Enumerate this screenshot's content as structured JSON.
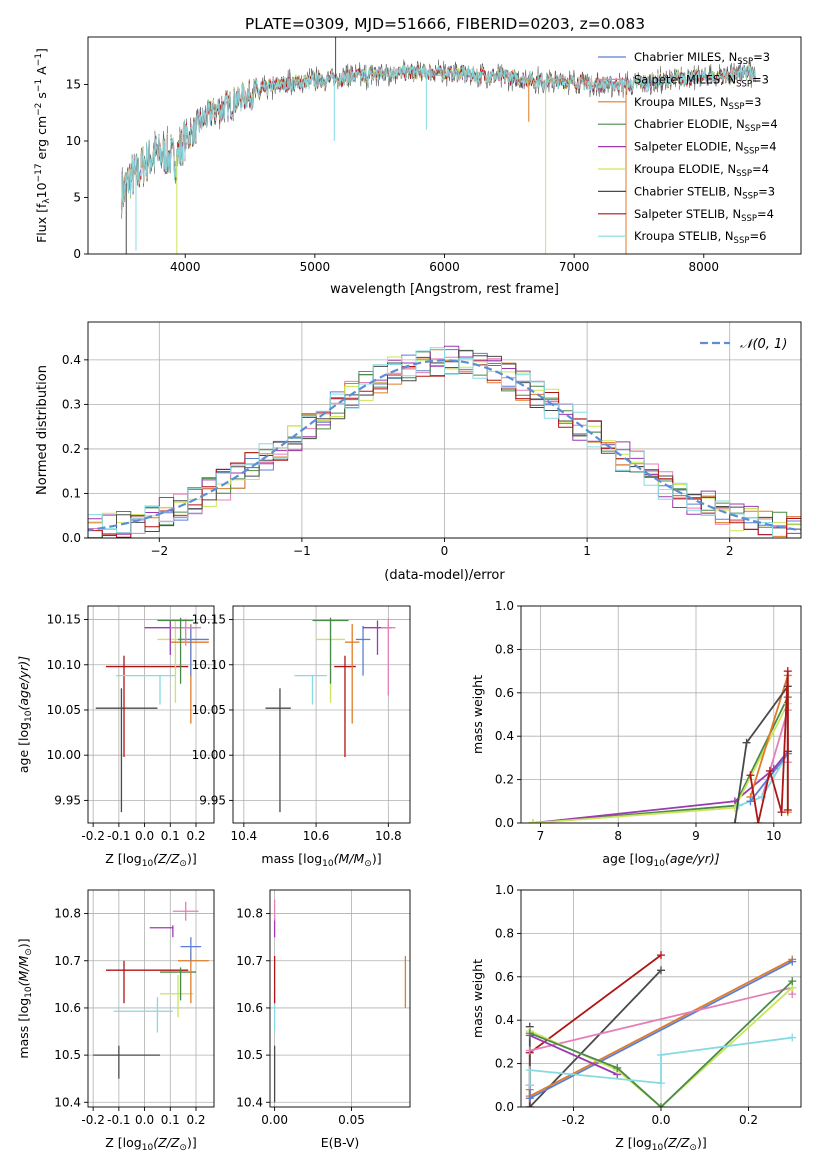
{
  "figure_title": "PLATE=0309, MJD=51666, FIBERID=0203, z=0.083",
  "chart_data": [
    {
      "id": "spectrum",
      "type": "line",
      "xlabel": "wavelength [Angstrom, rest frame]",
      "ylabel_parts": [
        "Flux [f",
        "λ",
        "10",
        "−17",
        " erg cm",
        "−2",
        " s",
        "−1",
        " A",
        "−1",
        "]"
      ],
      "xlim": [
        3250,
        8750
      ],
      "ylim": [
        0,
        19.2
      ],
      "xticks": [
        4000,
        5000,
        6000,
        7000,
        8000
      ],
      "yticks": [
        0,
        5,
        10,
        15
      ],
      "grid": false,
      "legend_position": "right",
      "envelope": {
        "x": [
          3510,
          3560,
          3620,
          3700,
          3780,
          3850,
          3930,
          4000,
          4080,
          4150,
          4250,
          4350,
          4450,
          4550,
          4650,
          4800,
          5000,
          5200,
          5400,
          5600,
          5800,
          6000,
          6200,
          6400,
          6600,
          6800,
          7000,
          7200,
          7400,
          7600,
          7800,
          8000,
          8200,
          8400
        ],
        "y": [
          5.5,
          6.5,
          7.0,
          8.2,
          9.0,
          8.8,
          8.5,
          10.3,
          11.0,
          12.0,
          12.8,
          13.3,
          14.0,
          14.2,
          14.8,
          15.1,
          15.3,
          15.6,
          15.8,
          16.0,
          16.1,
          16.0,
          15.9,
          15.7,
          15.5,
          15.3,
          15.2,
          15.0,
          15.0,
          15.2,
          15.5,
          15.6,
          15.8,
          16.0
        ]
      },
      "spikes": [
        {
          "x": 3545,
          "y": 0
        },
        {
          "x": 3620,
          "y": 0.3
        },
        {
          "x": 3935,
          "y": 0
        },
        {
          "x": 5160,
          "y": 19.2
        },
        {
          "x": 5150,
          "y": 10.0
        },
        {
          "x": 5860,
          "y": 11.0
        },
        {
          "x": 6780,
          "y": 0
        },
        {
          "x": 7400,
          "y": 0
        },
        {
          "x": 6650,
          "y": 11.7
        }
      ],
      "series": [
        {
          "name": "Chabrier MILES, N",
          "sub": "SSP",
          "suffix": "=3",
          "color": "#5b7fd4"
        },
        {
          "name": "Salpeter MILES, N",
          "sub": "SSP",
          "suffix": "=3",
          "color": "#e47fb8"
        },
        {
          "name": "Kroupa MILES, N",
          "sub": "SSP",
          "suffix": "=3",
          "color": "#e07b28"
        },
        {
          "name": "Chabrier ELODIE, N",
          "sub": "SSP",
          "suffix": "=4",
          "color": "#4a8a48"
        },
        {
          "name": "Salpeter ELODIE, N",
          "sub": "SSP",
          "suffix": "=4",
          "color": "#9c3ab0"
        },
        {
          "name": "Kroupa ELODIE, N",
          "sub": "SSP",
          "suffix": "=4",
          "color": "#c9e65c"
        },
        {
          "name": "Chabrier STELIB, N",
          "sub": "SSP",
          "suffix": "=3",
          "color": "#4a4a4a"
        },
        {
          "name": "Salpeter STELIB, N",
          "sub": "SSP",
          "suffix": "=4",
          "color": "#b01515"
        },
        {
          "name": "Kroupa STELIB, N",
          "sub": "SSP",
          "suffix": "=6",
          "color": "#86dae2"
        }
      ]
    },
    {
      "id": "residuals",
      "type": "histogram",
      "xlabel": "(data-model)/error",
      "ylabel": "Normed distribution",
      "xlim": [
        -2.5,
        2.5
      ],
      "ylim": [
        0,
        0.485
      ],
      "xticks": [
        -2,
        -1,
        0,
        1,
        2
      ],
      "yticks": [
        0.0,
        0.1,
        0.2,
        0.3,
        0.4
      ],
      "grid": true,
      "bin_width": 0.1,
      "reference_curve": {
        "label": "𝒩(0, 1)",
        "mean": 0,
        "sigma": 1,
        "color": "#5b8ed6",
        "style": "dashed"
      },
      "legend_position": "top-right"
    },
    {
      "id": "age_vs_Z",
      "type": "errorbar",
      "xlabel_parts": [
        "Z [log",
        "10",
        "(Z/Z",
        "⊙",
        ")]"
      ],
      "ylabel_parts": [
        "age  [log",
        "10",
        "(age/yr)]"
      ],
      "xlim": [
        -0.22,
        0.27
      ],
      "ylim": [
        9.925,
        10.165
      ],
      "xticks": [
        -0.2,
        -0.1,
        0.0,
        0.1,
        0.2
      ],
      "yticks": [
        9.95,
        10.0,
        10.05,
        10.1,
        10.15
      ],
      "grid": true,
      "points": [
        {
          "color": "#4a4a4a",
          "x": -0.09,
          "xerr": [
            0.1,
            0.14
          ],
          "y": 10.052,
          "yerr": [
            0.115,
            0.022
          ]
        },
        {
          "color": "#b01515",
          "x": -0.08,
          "xerr": [
            0.07,
            0.25
          ],
          "y": 10.098,
          "yerr": [
            0.1,
            0.012
          ]
        },
        {
          "color": "#86dae2",
          "x": 0.06,
          "xerr": [
            0.17,
            0.06
          ],
          "y": 10.088,
          "yerr": [
            0.032,
            0.0
          ]
        },
        {
          "color": "#c9e65c",
          "x": 0.12,
          "xerr": [
            0.07,
            0.05
          ],
          "y": 10.128,
          "yerr": [
            0.07,
            0.02
          ]
        },
        {
          "color": "#e07b28",
          "x": 0.18,
          "xerr": [
            0.08,
            0.07
          ],
          "y": 10.125,
          "yerr": [
            0.09,
            0.02
          ]
        },
        {
          "color": "#5b7fd4",
          "x": 0.18,
          "xerr": [
            0.05,
            0.07
          ],
          "y": 10.128,
          "yerr": [
            0.04,
            0.015
          ]
        },
        {
          "color": "#9c3ab0",
          "x": 0.1,
          "xerr": [
            0.1,
            0.1
          ],
          "y": 10.141,
          "yerr": [
            0.03,
            0.008
          ]
        },
        {
          "color": "#e47fb8",
          "x": 0.16,
          "xerr": [
            0.06,
            0.06
          ],
          "y": 10.141,
          "yerr": [
            0.02,
            0.01
          ]
        },
        {
          "color": "#4a8a48",
          "x": 0.14,
          "xerr": [
            0.09,
            0.05
          ],
          "y": 10.149,
          "yerr": [
            0.07,
            0.003
          ]
        }
      ]
    },
    {
      "id": "age_vs_mass",
      "type": "errorbar",
      "xlabel_parts": [
        "mass [log",
        "10",
        "(M/M",
        "⊙",
        ")]"
      ],
      "xlim": [
        10.37,
        10.86
      ],
      "ylim": [
        9.925,
        10.165
      ],
      "xticks": [
        10.4,
        10.6,
        10.8
      ],
      "yticks": [
        9.95,
        10.0,
        10.05,
        10.1,
        10.15
      ],
      "grid": true,
      "points": [
        {
          "color": "#4a4a4a",
          "x": 10.5,
          "xerr": [
            0.04,
            0.03
          ],
          "y": 10.052,
          "yerr": [
            0.115,
            0.022
          ]
        },
        {
          "color": "#b01515",
          "x": 10.68,
          "xerr": [
            0.03,
            0.03
          ],
          "y": 10.098,
          "yerr": [
            0.1,
            0.012
          ]
        },
        {
          "color": "#86dae2",
          "x": 10.59,
          "xerr": [
            0.05,
            0.04
          ],
          "y": 10.088,
          "yerr": [
            0.032,
            0.0
          ]
        },
        {
          "color": "#c9e65c",
          "x": 10.64,
          "xerr": [
            0.04,
            0.04
          ],
          "y": 10.128,
          "yerr": [
            0.07,
            0.02
          ]
        },
        {
          "color": "#e07b28",
          "x": 10.7,
          "xerr": [
            0.02,
            0.02
          ],
          "y": 10.125,
          "yerr": [
            0.09,
            0.02
          ]
        },
        {
          "color": "#5b7fd4",
          "x": 10.73,
          "xerr": [
            0.02,
            0.02
          ],
          "y": 10.128,
          "yerr": [
            0.04,
            0.015
          ]
        },
        {
          "color": "#9c3ab0",
          "x": 10.77,
          "xerr": [
            0.04,
            0.04
          ],
          "y": 10.141,
          "yerr": [
            0.03,
            0.008
          ]
        },
        {
          "color": "#e47fb8",
          "x": 10.8,
          "xerr": [
            0.02,
            0.02
          ],
          "y": 10.141,
          "yerr": [
            0.075,
            0.01
          ]
        },
        {
          "color": "#4a8a48",
          "x": 10.64,
          "xerr": [
            0.05,
            0.05
          ],
          "y": 10.149,
          "yerr": [
            0.07,
            0.003
          ]
        }
      ]
    },
    {
      "id": "mass_weight_vs_age",
      "type": "line",
      "xlabel_parts": [
        "age  [log",
        "10",
        "(age/yr)]"
      ],
      "ylabel": "mass weight",
      "xlim": [
        6.75,
        10.35
      ],
      "ylim": [
        0,
        1.0
      ],
      "xticks": [
        7,
        8,
        9,
        10
      ],
      "yticks": [
        0.0,
        0.2,
        0.4,
        0.6,
        0.8,
        1.0
      ],
      "grid": true,
      "series": [
        {
          "color": "#4a8a48",
          "x": [
            6.9,
            9.5,
            10.18
          ],
          "y": [
            0.0,
            0.08,
            0.58
          ]
        },
        {
          "color": "#9c3ab0",
          "x": [
            6.9,
            9.5,
            10.0,
            10.18
          ],
          "y": [
            0.0,
            0.1,
            0.25,
            0.33
          ]
        },
        {
          "color": "#c9e65c",
          "x": [
            6.9,
            9.5,
            10.18
          ],
          "y": [
            0.0,
            0.07,
            0.55
          ]
        },
        {
          "color": "#e07b28",
          "x": [
            9.7,
            10.18,
            10.18
          ],
          "y": [
            0.12,
            0.68,
            0.05
          ]
        },
        {
          "color": "#e47fb8",
          "x": [
            9.85,
            10.18,
            10.18
          ],
          "y": [
            0.12,
            0.52,
            0.28
          ]
        },
        {
          "color": "#86dae2",
          "x": [
            9.55,
            9.85,
            10.18,
            10.18
          ],
          "y": [
            0.08,
            0.12,
            0.32,
            0.06
          ]
        },
        {
          "color": "#5b7fd4",
          "x": [
            9.7,
            10.18
          ],
          "y": [
            0.1,
            0.32
          ]
        },
        {
          "color": "#4a4a4a",
          "x": [
            9.5,
            9.65,
            10.18,
            10.18
          ],
          "y": [
            0.0,
            0.37,
            0.63,
            0.33
          ]
        },
        {
          "color": "#b01515",
          "x": [
            9.7,
            9.8,
            9.95,
            10.1,
            10.18,
            10.18
          ],
          "y": [
            0.22,
            0.0,
            0.24,
            0.05,
            0.7,
            0.06
          ]
        }
      ]
    },
    {
      "id": "mass_vs_Z",
      "type": "errorbar",
      "xlabel_parts": [
        "Z [log",
        "10",
        "(Z/Z",
        "⊙",
        ")]"
      ],
      "ylabel_parts": [
        "mass [log",
        "10",
        "(M/M",
        "⊙",
        ")]"
      ],
      "xlim": [
        -0.22,
        0.27
      ],
      "ylim": [
        10.39,
        10.85
      ],
      "xticks": [
        -0.2,
        -0.1,
        0.0,
        0.1,
        0.2
      ],
      "yticks": [
        10.4,
        10.5,
        10.6,
        10.7,
        10.8
      ],
      "grid": true,
      "points": [
        {
          "color": "#4a4a4a",
          "x": -0.1,
          "xerr": [
            0.1,
            0.16
          ],
          "y": 10.5,
          "yerr": [
            0.05,
            0.02
          ]
        },
        {
          "color": "#b01515",
          "x": -0.08,
          "xerr": [
            0.07,
            0.25
          ],
          "y": 10.68,
          "yerr": [
            0.07,
            0.02
          ]
        },
        {
          "color": "#86dae2",
          "x": 0.05,
          "xerr": [
            0.17,
            0.06
          ],
          "y": 10.593,
          "yerr": [
            0.045,
            0.03
          ]
        },
        {
          "color": "#c9e65c",
          "x": 0.13,
          "xerr": [
            0.07,
            0.06
          ],
          "y": 10.63,
          "yerr": [
            0.05,
            0.04
          ]
        },
        {
          "color": "#4a8a48",
          "x": 0.14,
          "xerr": [
            0.08,
            0.06
          ],
          "y": 10.676,
          "yerr": [
            0.06,
            0.01
          ]
        },
        {
          "color": "#e07b28",
          "x": 0.18,
          "xerr": [
            0.05,
            0.07
          ],
          "y": 10.7,
          "yerr": [
            0.09,
            0.02
          ]
        },
        {
          "color": "#5b7fd4",
          "x": 0.18,
          "xerr": [
            0.04,
            0.04
          ],
          "y": 10.73,
          "yerr": [
            0.03,
            0.02
          ]
        },
        {
          "color": "#9c3ab0",
          "x": 0.11,
          "xerr": [
            0.09,
            0.0
          ],
          "y": 10.77,
          "yerr": [
            0.02,
            0.005
          ]
        },
        {
          "color": "#e47fb8",
          "x": 0.16,
          "xerr": [
            0.05,
            0.05
          ],
          "y": 10.805,
          "yerr": [
            0.02,
            0.02
          ]
        }
      ]
    },
    {
      "id": "mass_vs_ebv",
      "type": "errorbar",
      "xlabel": "E(B-V)",
      "xlim": [
        -0.003,
        0.088
      ],
      "ylim": [
        10.39,
        10.85
      ],
      "xticks": [
        0.0,
        0.05
      ],
      "yticks": [
        10.4,
        10.5,
        10.6,
        10.7,
        10.8
      ],
      "grid": true,
      "points": [
        {
          "color": "#4a4a4a",
          "x": 0.0,
          "xerr": [
            0,
            0
          ],
          "y": 10.5,
          "yerr": [
            0.1,
            0.02
          ]
        },
        {
          "color": "#86dae2",
          "x": 0.0,
          "xerr": [
            0,
            0
          ],
          "y": 10.6,
          "yerr": [
            0.05,
            0.04
          ]
        },
        {
          "color": "#b01515",
          "x": 0.0,
          "xerr": [
            0,
            0
          ],
          "y": 10.68,
          "yerr": [
            0.07,
            0.03
          ]
        },
        {
          "color": "#9c3ab0",
          "x": 0.0,
          "xerr": [
            0,
            0
          ],
          "y": 10.77,
          "yerr": [
            0.02,
            0.02
          ]
        },
        {
          "color": "#e47fb8",
          "x": 0.0,
          "xerr": [
            0,
            0
          ],
          "y": 10.805,
          "yerr": [
            0.02,
            0.025
          ]
        },
        {
          "color": "#e07b28",
          "x": 0.085,
          "xerr": [
            0,
            0
          ],
          "y": 10.66,
          "yerr": [
            0.06,
            0.05
          ]
        }
      ]
    },
    {
      "id": "mass_weight_vs_Z",
      "type": "line",
      "xlabel_parts": [
        "Z [log",
        "10",
        "(Z/Z",
        "⊙",
        ")]"
      ],
      "ylabel": "mass weight",
      "xlim": [
        -0.32,
        0.32
      ],
      "ylim": [
        0,
        1.0
      ],
      "xticks": [
        -0.2,
        0.0,
        0.2
      ],
      "yticks": [
        0.0,
        0.2,
        0.4,
        0.6,
        0.8,
        1.0
      ],
      "grid": true,
      "series": [
        {
          "color": "#b01515",
          "x": [
            -0.3,
            -0.3,
            0.0
          ],
          "y": [
            0.0,
            0.25,
            0.7
          ]
        },
        {
          "color": "#4a4a4a",
          "x": [
            -0.3,
            -0.3,
            0.0
          ],
          "y": [
            0.37,
            0.0,
            0.63
          ]
        },
        {
          "color": "#e07b28",
          "x": [
            -0.3,
            -0.3,
            0.3
          ],
          "y": [
            0.08,
            0.05,
            0.68
          ]
        },
        {
          "color": "#5b7fd4",
          "x": [
            -0.3,
            -0.3,
            0.3
          ],
          "y": [
            0.1,
            0.04,
            0.67
          ]
        },
        {
          "color": "#e47fb8",
          "x": [
            -0.3,
            0.3,
            0.3
          ],
          "y": [
            0.26,
            0.55,
            0.52
          ]
        },
        {
          "color": "#9c3ab0",
          "x": [
            -0.3,
            -0.1
          ],
          "y": [
            0.33,
            0.15
          ]
        },
        {
          "color": "#c9e65c",
          "x": [
            -0.3,
            -0.1,
            0.0,
            0.3
          ],
          "y": [
            0.35,
            0.17,
            0.0,
            0.55
          ]
        },
        {
          "color": "#4a8a48",
          "x": [
            -0.3,
            -0.1,
            0.0,
            0.3
          ],
          "y": [
            0.34,
            0.18,
            0.0,
            0.58
          ]
        },
        {
          "color": "#86dae2",
          "x": [
            -0.3,
            -0.3,
            0.0,
            0.0,
            0.3
          ],
          "y": [
            0.1,
            0.17,
            0.11,
            0.24,
            0.32
          ]
        }
      ]
    }
  ]
}
